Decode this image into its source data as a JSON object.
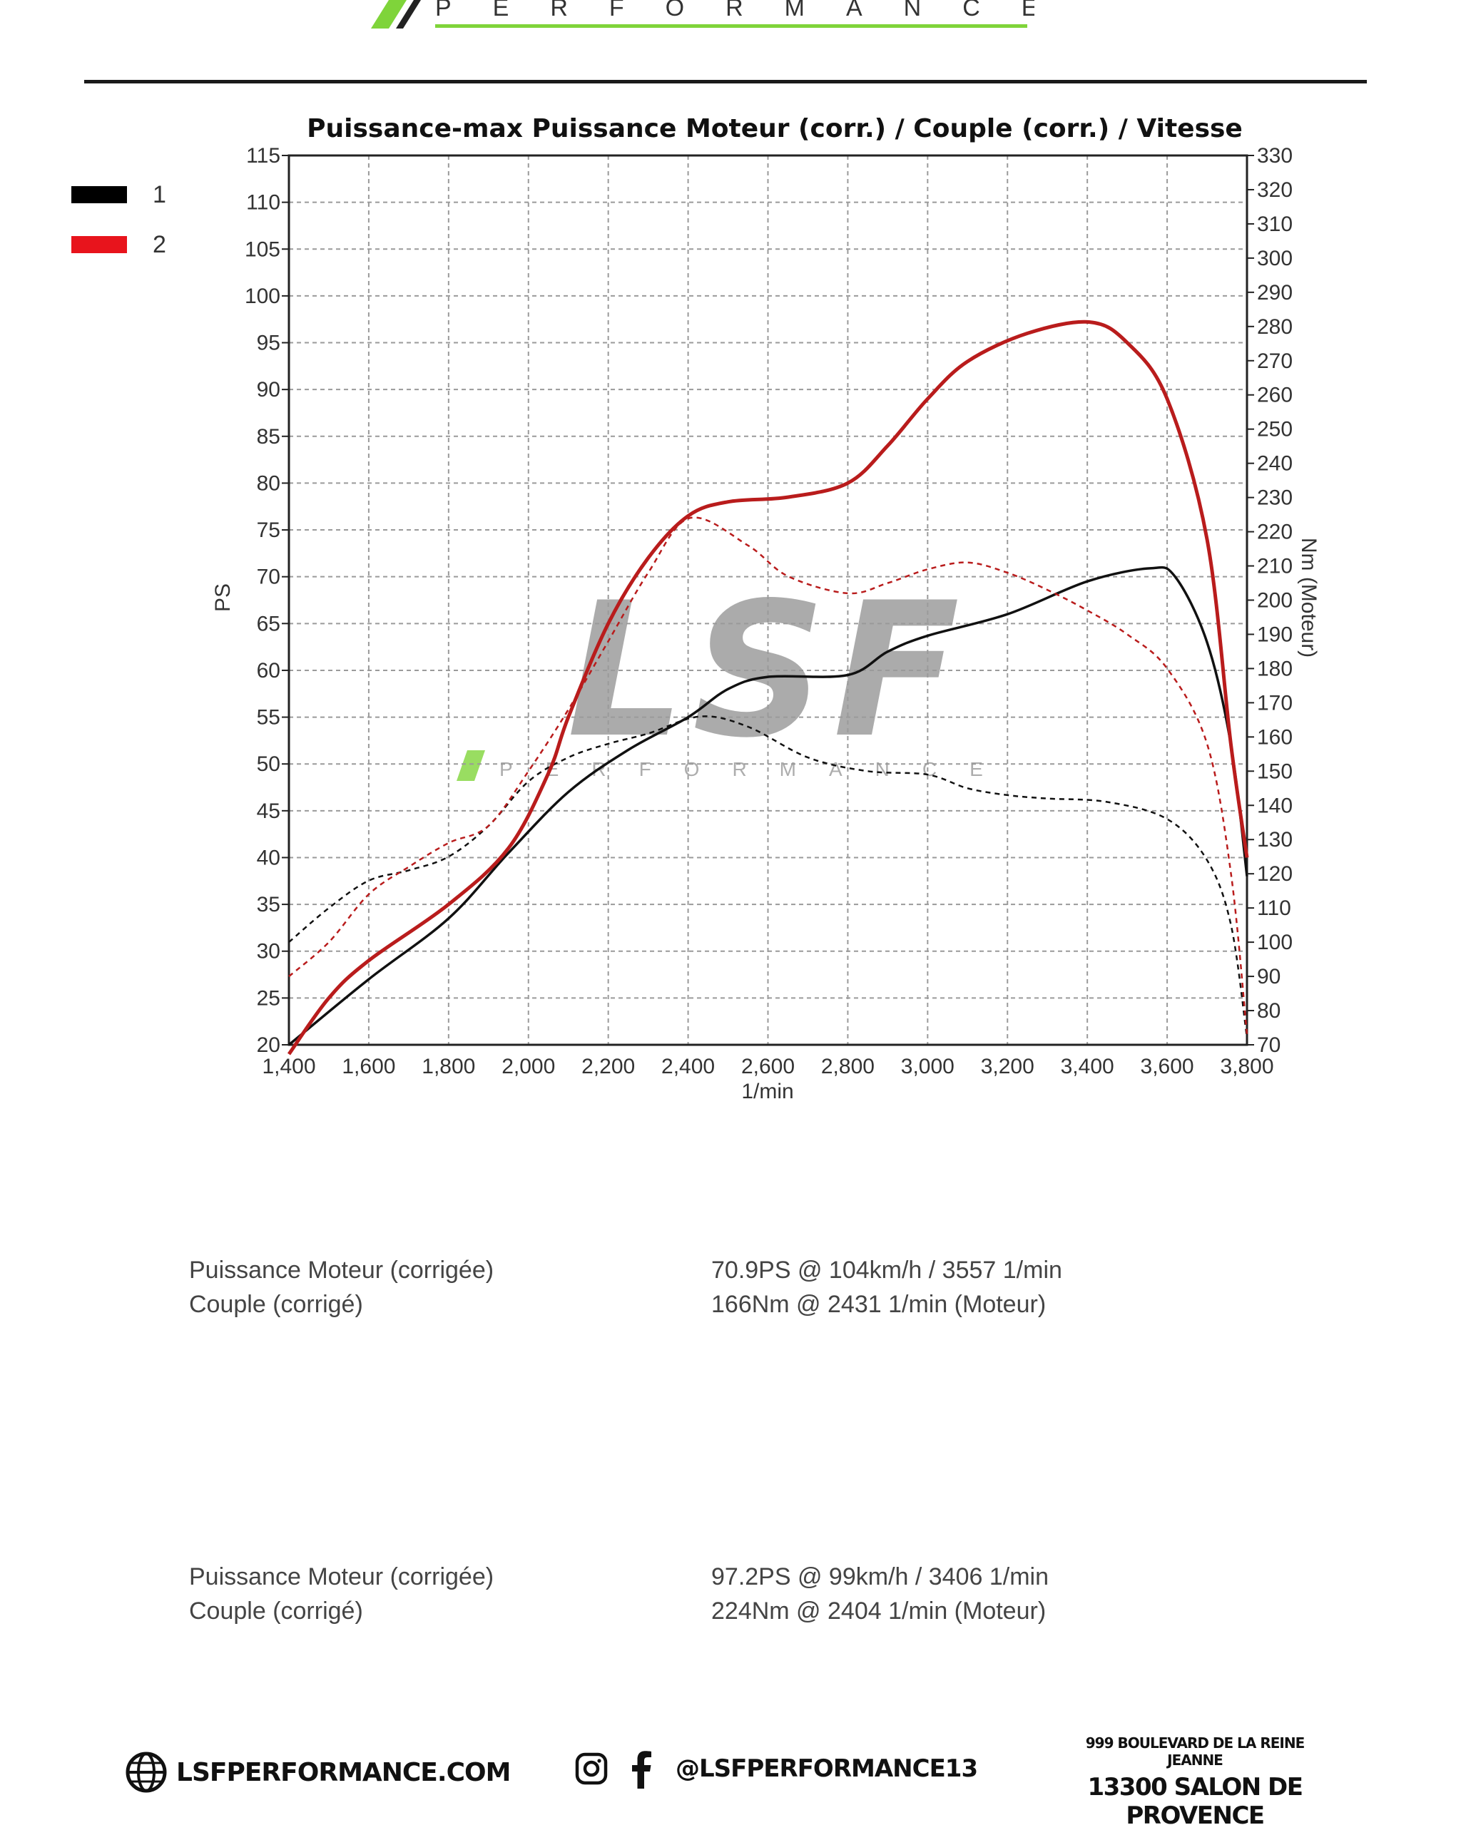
{
  "header": {
    "brand_tagline": "PERFORMANCE",
    "accent_color": "#7fd43a"
  },
  "legend": [
    {
      "label": "1",
      "color": "#000000"
    },
    {
      "label": "2",
      "color": "#e8141c"
    }
  ],
  "watermark": {
    "text": "LSF",
    "tagline": "PERFORMANCE"
  },
  "chart_data": {
    "type": "line",
    "title": "Puissance-max Puissance Moteur (corr.) / Couple (corr.) / Vitesse",
    "xlabel": "1/min",
    "ylabel_left": "PS",
    "ylabel_right": "Nm (Moteur)",
    "xlim": [
      1400,
      3800
    ],
    "ylim_left": [
      20,
      115
    ],
    "ylim_right": [
      70,
      330
    ],
    "x_ticks": [
      "1,400",
      "1,600",
      "1,800",
      "2,000",
      "2,200",
      "2,400",
      "2,600",
      "2,800",
      "3,000",
      "3,200",
      "3,400",
      "3,600",
      "3,800"
    ],
    "y_left_ticks": [
      "115",
      "110",
      "105",
      "100",
      "95",
      "90",
      "85",
      "80",
      "75",
      "70",
      "65",
      "60",
      "55",
      "50",
      "45",
      "40",
      "35",
      "30",
      "25",
      "20"
    ],
    "y_right_ticks": [
      "330",
      "320",
      "310",
      "300",
      "290",
      "280",
      "270",
      "260",
      "250",
      "240",
      "230",
      "220",
      "210",
      "200",
      "190",
      "180",
      "170",
      "160",
      "150",
      "140",
      "130",
      "120",
      "110",
      "100",
      "90",
      "80",
      "70"
    ],
    "grid": true,
    "series": [
      {
        "name": "1",
        "kind": "power",
        "axis": "left",
        "style": "solid",
        "color": "#111111",
        "points": [
          [
            1400,
            20
          ],
          [
            1600,
            27
          ],
          [
            1800,
            33.5
          ],
          [
            1950,
            40.5
          ],
          [
            2100,
            47
          ],
          [
            2250,
            51.5
          ],
          [
            2400,
            55
          ],
          [
            2500,
            58
          ],
          [
            2600,
            59.3
          ],
          [
            2800,
            59.5
          ],
          [
            2900,
            62
          ],
          [
            3000,
            63.7
          ],
          [
            3200,
            66
          ],
          [
            3400,
            69.5
          ],
          [
            3557,
            70.9
          ],
          [
            3620,
            70
          ],
          [
            3700,
            63
          ],
          [
            3760,
            52
          ],
          [
            3800,
            38
          ]
        ]
      },
      {
        "name": "1",
        "kind": "torque",
        "axis": "right",
        "style": "dashed",
        "color": "#111111",
        "points": [
          [
            1400,
            100
          ],
          [
            1500,
            110
          ],
          [
            1600,
            118
          ],
          [
            1700,
            121
          ],
          [
            1800,
            125
          ],
          [
            1900,
            134
          ],
          [
            2000,
            147
          ],
          [
            2100,
            154
          ],
          [
            2200,
            158
          ],
          [
            2300,
            161
          ],
          [
            2431,
            166
          ],
          [
            2550,
            163
          ],
          [
            2700,
            154
          ],
          [
            2850,
            150
          ],
          [
            3000,
            149
          ],
          [
            3100,
            145
          ],
          [
            3200,
            143
          ],
          [
            3300,
            142
          ],
          [
            3450,
            141
          ],
          [
            3600,
            136
          ],
          [
            3700,
            124
          ],
          [
            3760,
            105
          ],
          [
            3800,
            72
          ]
        ]
      },
      {
        "name": "2",
        "kind": "power",
        "axis": "left",
        "style": "solid",
        "color": "#b91c1c",
        "points": [
          [
            1400,
            19
          ],
          [
            1500,
            25
          ],
          [
            1600,
            29
          ],
          [
            1800,
            35
          ],
          [
            1950,
            41
          ],
          [
            2050,
            49
          ],
          [
            2100,
            55
          ],
          [
            2200,
            65
          ],
          [
            2300,
            72
          ],
          [
            2400,
            76.5
          ],
          [
            2500,
            78
          ],
          [
            2650,
            78.5
          ],
          [
            2800,
            80
          ],
          [
            2900,
            84
          ],
          [
            3000,
            89
          ],
          [
            3100,
            93
          ],
          [
            3250,
            96
          ],
          [
            3406,
            97.2
          ],
          [
            3500,
            95
          ],
          [
            3600,
            89
          ],
          [
            3700,
            74
          ],
          [
            3760,
            52
          ],
          [
            3800,
            40
          ]
        ]
      },
      {
        "name": "2",
        "kind": "torque",
        "axis": "right",
        "style": "dashed",
        "color": "#b91c1c",
        "points": [
          [
            1400,
            90
          ],
          [
            1500,
            100
          ],
          [
            1600,
            114
          ],
          [
            1700,
            122
          ],
          [
            1800,
            129
          ],
          [
            1900,
            134
          ],
          [
            2000,
            150
          ],
          [
            2100,
            168
          ],
          [
            2200,
            188
          ],
          [
            2300,
            208
          ],
          [
            2404,
            224
          ],
          [
            2550,
            216
          ],
          [
            2650,
            207
          ],
          [
            2800,
            202
          ],
          [
            2900,
            205
          ],
          [
            3000,
            209
          ],
          [
            3100,
            211
          ],
          [
            3200,
            208
          ],
          [
            3300,
            203
          ],
          [
            3400,
            197
          ],
          [
            3500,
            190
          ],
          [
            3600,
            180
          ],
          [
            3700,
            158
          ],
          [
            3760,
            120
          ],
          [
            3800,
            73
          ]
        ]
      }
    ]
  },
  "results": [
    {
      "power_label": "Puissance Moteur (corrigée)",
      "power_value": "70.9PS @ 104km/h / 3557 1/min",
      "torque_label": "Couple (corrigé)",
      "torque_value": "166Nm @ 2431 1/min (Moteur)"
    },
    {
      "power_label": "Puissance Moteur (corrigée)",
      "power_value": "97.2PS @ 99km/h / 3406 1/min",
      "torque_label": "Couple (corrigé)",
      "torque_value": "224Nm @ 2404 1/min (Moteur)"
    }
  ],
  "footer": {
    "website": "LSFPERFORMANCE.COM",
    "social_handle": "@LSFPERFORMANCE13",
    "address_line1": "999 BOULEVARD DE LA REINE JEANNE",
    "address_line2": "13300 SALON DE PROVENCE",
    "globe_icon": "globe-icon",
    "instagram_icon": "instagram-icon",
    "facebook_icon": "facebook-icon"
  }
}
